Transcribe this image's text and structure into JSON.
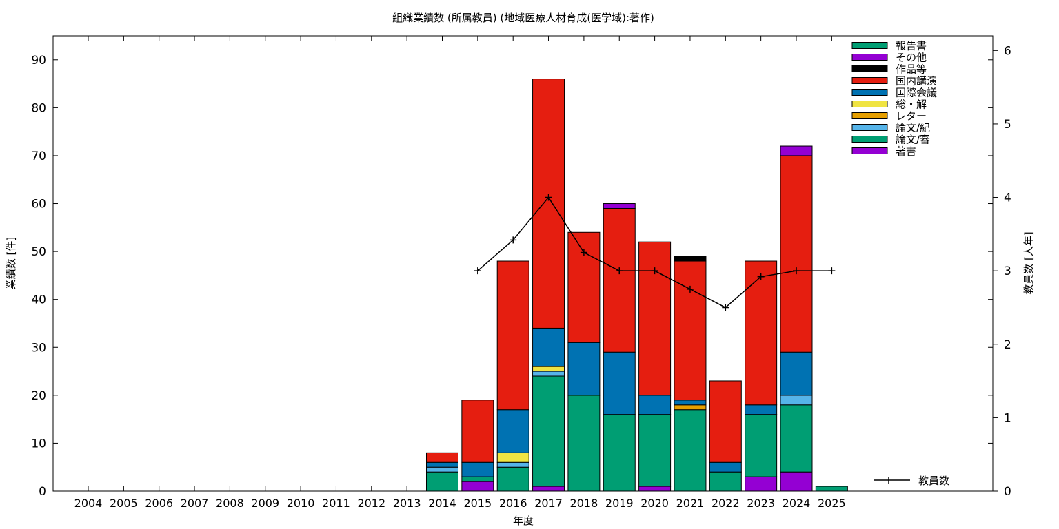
{
  "chart_data": {
    "type": "bar",
    "stacked": true,
    "title": "組織業績数 (所属教員) (地域医療人材育成(医学域):著作)",
    "xlabel": "年度",
    "ylabel": "業績数 [件]",
    "y2label": "教員数 [人年]",
    "ylim": [
      0,
      95
    ],
    "y2lim": [
      0,
      6.2
    ],
    "yticks": [
      0,
      10,
      20,
      30,
      40,
      50,
      60,
      70,
      80,
      90
    ],
    "y2ticks": [
      0,
      1,
      2,
      3,
      4,
      5,
      6
    ],
    "categories": [
      "2004",
      "2005",
      "2006",
      "2007",
      "2008",
      "2009",
      "2010",
      "2011",
      "2012",
      "2013",
      "2014",
      "2015",
      "2016",
      "2017",
      "2018",
      "2019",
      "2020",
      "2021",
      "2022",
      "2023",
      "2024",
      "2025"
    ],
    "legend_order": [
      "報告書",
      "その他",
      "作品等",
      "国内講演",
      "国際会議",
      "総・解",
      "レター",
      "論文/紀",
      "論文/審",
      "著書"
    ],
    "legend_position": "top-right",
    "series": [
      {
        "name": "著書",
        "color": "#9400d3",
        "values": [
          0,
          0,
          0,
          0,
          0,
          0,
          0,
          0,
          0,
          0,
          0,
          2,
          0,
          1,
          0,
          0,
          1,
          0,
          0,
          3,
          4,
          0
        ]
      },
      {
        "name": "論文/審",
        "color": "#009e73",
        "values": [
          0,
          0,
          0,
          0,
          0,
          0,
          0,
          0,
          0,
          0,
          4,
          1,
          5,
          23,
          20,
          16,
          15,
          17,
          4,
          13,
          14,
          0
        ]
      },
      {
        "name": "論文/紀",
        "color": "#56b4e9",
        "values": [
          0,
          0,
          0,
          0,
          0,
          0,
          0,
          0,
          0,
          0,
          1,
          0,
          1,
          1,
          0,
          0,
          0,
          0,
          0,
          0,
          2,
          0
        ]
      },
      {
        "name": "レター",
        "color": "#e69f00",
        "values": [
          0,
          0,
          0,
          0,
          0,
          0,
          0,
          0,
          0,
          0,
          0,
          0,
          0,
          0,
          0,
          0,
          0,
          1,
          0,
          0,
          0,
          0
        ]
      },
      {
        "name": "総・解",
        "color": "#f0e442",
        "values": [
          0,
          0,
          0,
          0,
          0,
          0,
          0,
          0,
          0,
          0,
          0,
          0,
          2,
          1,
          0,
          0,
          0,
          0,
          0,
          0,
          0,
          0
        ]
      },
      {
        "name": "国際会議",
        "color": "#0072b2",
        "values": [
          0,
          0,
          0,
          0,
          0,
          0,
          0,
          0,
          0,
          0,
          1,
          3,
          9,
          8,
          11,
          13,
          4,
          1,
          2,
          2,
          9,
          0
        ]
      },
      {
        "name": "国内講演",
        "color": "#e51e10",
        "values": [
          0,
          0,
          0,
          0,
          0,
          0,
          0,
          0,
          0,
          0,
          2,
          13,
          31,
          52,
          23,
          30,
          32,
          29,
          17,
          30,
          41,
          0
        ]
      },
      {
        "name": "作品等",
        "color": "#000000",
        "values": [
          0,
          0,
          0,
          0,
          0,
          0,
          0,
          0,
          0,
          0,
          0,
          0,
          0,
          0,
          0,
          0,
          0,
          1,
          0,
          0,
          0,
          0
        ]
      },
      {
        "name": "その他",
        "color": "#9400d3",
        "values": [
          0,
          0,
          0,
          0,
          0,
          0,
          0,
          0,
          0,
          0,
          0,
          0,
          0,
          0,
          0,
          1,
          0,
          0,
          0,
          0,
          2,
          0
        ]
      },
      {
        "name": "報告書",
        "color": "#009e73",
        "values": [
          0,
          0,
          0,
          0,
          0,
          0,
          0,
          0,
          0,
          0,
          0,
          0,
          0,
          0,
          0,
          0,
          0,
          0,
          0,
          0,
          0,
          1
        ]
      }
    ],
    "line_series": {
      "name": "教員数",
      "axis": "y2",
      "color": "#000000",
      "points": [
        {
          "x": "2015",
          "y": 3.0
        },
        {
          "x": "2016",
          "y": 3.42
        },
        {
          "x": "2017",
          "y": 4.0
        },
        {
          "x": "2018",
          "y": 3.25
        },
        {
          "x": "2019",
          "y": 3.0
        },
        {
          "x": "2020",
          "y": 3.0
        },
        {
          "x": "2021",
          "y": 2.75
        },
        {
          "x": "2022",
          "y": 2.5
        },
        {
          "x": "2023",
          "y": 2.92
        },
        {
          "x": "2024",
          "y": 3.0
        },
        {
          "x": "2025",
          "y": 3.0
        }
      ]
    },
    "line_legend_position": "bottom-right"
  }
}
